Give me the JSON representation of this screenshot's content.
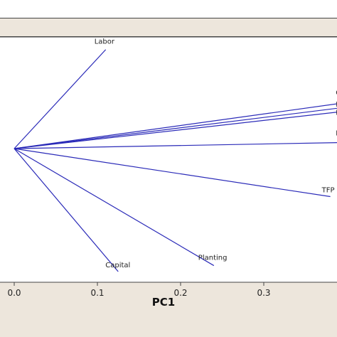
{
  "chart_data": {
    "type": "biplot",
    "xlabel": "PC1",
    "ylabel": "",
    "xlim": [
      -0.017,
      0.394
    ],
    "ylim": [
      -0.42,
      0.36
    ],
    "x_ticks": [
      0.0,
      0.1,
      0.2,
      0.3
    ],
    "x_tick_labels": [
      "0.0",
      "0.1",
      "0.2",
      "0.3"
    ],
    "grid": false,
    "origin": [
      0,
      0
    ],
    "line_color": "#2a2ab8",
    "vectors": [
      {
        "label": "Labor",
        "x": 0.11,
        "y": 0.33
      },
      {
        "label": "Ca",
        "x": 0.39,
        "y": 0.15
      },
      {
        "label": "Har",
        "x": 0.39,
        "y": 0.135
      },
      {
        "label": "Pro",
        "x": 0.39,
        "y": 0.122
      },
      {
        "label": "Ma",
        "x": 0.39,
        "y": 0.02
      },
      {
        "label": "TFP",
        "x": 0.38,
        "y": -0.16
      },
      {
        "label": "Planting",
        "x": 0.24,
        "y": -0.39
      },
      {
        "label": "Capital",
        "x": 0.125,
        "y": -0.41
      }
    ]
  }
}
